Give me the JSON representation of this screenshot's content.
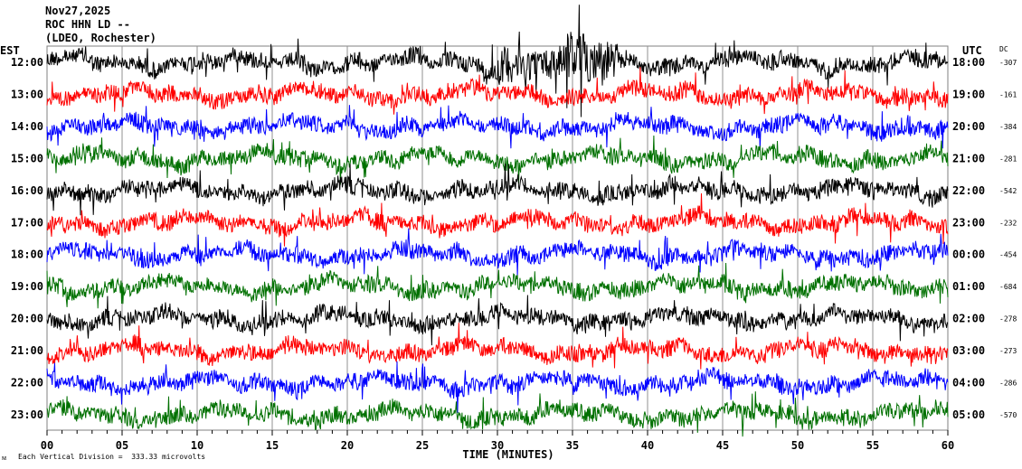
{
  "header": {
    "date": "Nov27,2025",
    "station": "ROC HHN LD --",
    "network": "(LDEO, Rochester)"
  },
  "left_axis_title": "EST",
  "right_axis_title": "UTC",
  "dc_title": "DC",
  "footer": {
    "mark": "ᴍ",
    "scale_note": "Each Vertical Division =  333.33 microvolts"
  },
  "chart_data": {
    "type": "line",
    "subtype": "helicorder",
    "xlabel": "TIME (MINUTES)",
    "xlim": [
      0,
      60
    ],
    "x_tick_labels": [
      "00",
      "05",
      "10",
      "15",
      "20",
      "25",
      "30",
      "35",
      "40",
      "45",
      "50",
      "55",
      "60"
    ],
    "grid": "vertical every 5 minutes",
    "rows": [
      {
        "est": "12:00",
        "utc": "18:00",
        "dc": "-307",
        "color": "#000000"
      },
      {
        "est": "13:00",
        "utc": "19:00",
        "dc": "-161",
        "color": "#ff0000"
      },
      {
        "est": "14:00",
        "utc": "20:00",
        "dc": "-384",
        "color": "#0000ff"
      },
      {
        "est": "15:00",
        "utc": "21:00",
        "dc": "-281",
        "color": "#007000"
      },
      {
        "est": "16:00",
        "utc": "22:00",
        "dc": "-542",
        "color": "#000000"
      },
      {
        "est": "17:00",
        "utc": "23:00",
        "dc": "-232",
        "color": "#ff0000"
      },
      {
        "est": "18:00",
        "utc": "00:00",
        "dc": "-454",
        "color": "#0000ff"
      },
      {
        "est": "19:00",
        "utc": "01:00",
        "dc": "-684",
        "color": "#007000"
      },
      {
        "est": "20:00",
        "utc": "02:00",
        "dc": "-278",
        "color": "#000000"
      },
      {
        "est": "21:00",
        "utc": "03:00",
        "dc": "-273",
        "color": "#ff0000"
      },
      {
        "est": "22:00",
        "utc": "04:00",
        "dc": "-286",
        "color": "#0000ff"
      },
      {
        "est": "23:00",
        "utc": "05:00",
        "dc": "-570",
        "color": "#007000"
      }
    ]
  }
}
